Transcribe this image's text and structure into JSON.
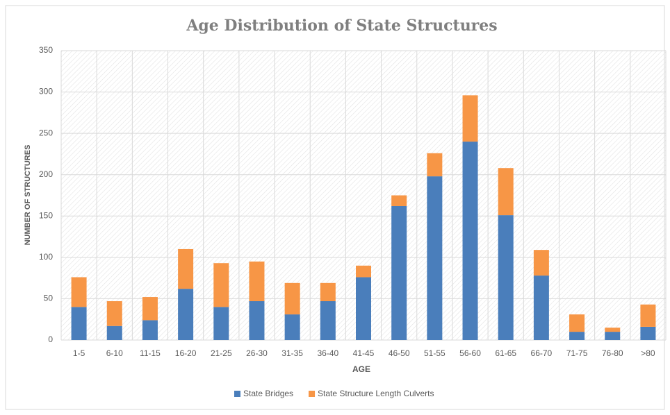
{
  "chart_data": {
    "type": "stacked_bar",
    "title": "Age Distribution of State Structures",
    "xlabel": "AGE",
    "ylabel": "NUMBER OF STRUCTURES",
    "categories": [
      "1-5",
      "6-10",
      "11-15",
      "16-20",
      "21-25",
      "26-30",
      "31-35",
      "36-40",
      "41-45",
      "46-50",
      "51-55",
      "56-60",
      "61-65",
      "66-70",
      "71-75",
      "76-80",
      ">80"
    ],
    "series": [
      {
        "name": "State Bridges",
        "color": "#4a7ebb",
        "values": [
          40,
          17,
          24,
          62,
          40,
          47,
          31,
          47,
          76,
          162,
          198,
          240,
          151,
          78,
          10,
          10,
          16
        ]
      },
      {
        "name": "State Structure Length Culverts",
        "color": "#f79646",
        "values": [
          36,
          30,
          28,
          48,
          53,
          48,
          38,
          22,
          14,
          13,
          28,
          56,
          57,
          31,
          21,
          5,
          27
        ]
      }
    ],
    "ylim": [
      0,
      350
    ],
    "yticks": [
      0,
      50,
      100,
      150,
      200,
      250,
      300,
      350
    ],
    "grid": true,
    "legend": "bottom"
  }
}
